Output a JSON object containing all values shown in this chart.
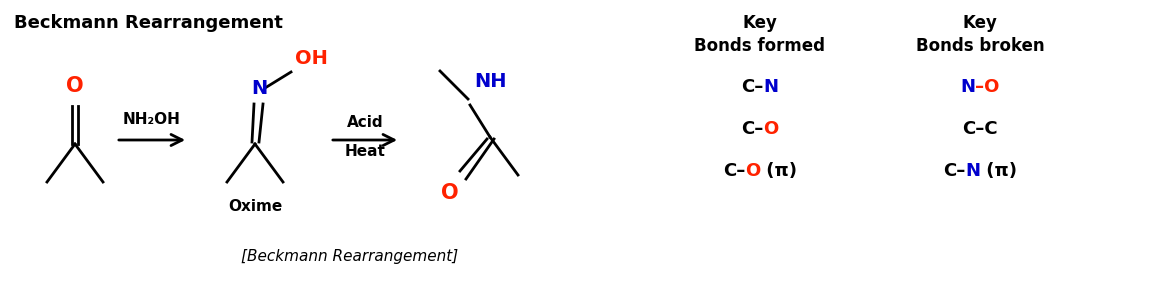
{
  "title": "Beckmann Rearrangement",
  "subtitle": "[Beckmann Rearrangement]",
  "background_color": "#ffffff",
  "title_fontsize": 13,
  "title_fontweight": "bold",
  "subtitle_fontsize": 11,
  "bonds_formed": [
    {
      "parts": [
        {
          "text": "C–",
          "color": "#000000"
        },
        {
          "text": "N",
          "color": "#0000cd"
        }
      ]
    },
    {
      "parts": [
        {
          "text": "C–",
          "color": "#000000"
        },
        {
          "text": "O",
          "color": "#ff2200"
        }
      ]
    },
    {
      "parts": [
        {
          "text": "C–",
          "color": "#000000"
        },
        {
          "text": "O",
          "color": "#ff2200"
        },
        {
          "text": " (π)",
          "color": "#000000"
        }
      ]
    }
  ],
  "bonds_broken": [
    {
      "parts": [
        {
          "text": "N",
          "color": "#0000cd"
        },
        {
          "text": "–O",
          "color": "#ff2200"
        }
      ]
    },
    {
      "parts": [
        {
          "text": "C–C",
          "color": "#000000"
        }
      ]
    },
    {
      "parts": [
        {
          "text": "C–",
          "color": "#000000"
        },
        {
          "text": "N",
          "color": "#0000cd"
        },
        {
          "text": " (π)",
          "color": "#000000"
        }
      ]
    }
  ],
  "black": "#000000",
  "red": "#ff2200",
  "blue": "#0000cd",
  "arrow_label1": "NH₂OH",
  "arrow_label2_line1": "Acid",
  "arrow_label2_line2": "Heat",
  "oxime_label": "Oxime"
}
